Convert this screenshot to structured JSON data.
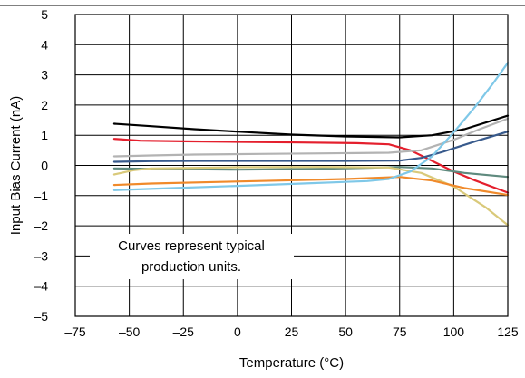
{
  "chart_data": {
    "type": "line",
    "title": "",
    "xlabel": "Temperature (°C)",
    "ylabel": "Input Bias Current (nA)",
    "xlim": [
      -75,
      125
    ],
    "ylim": [
      -5,
      5
    ],
    "x_ticks": [
      -75,
      -50,
      -25,
      0,
      25,
      50,
      75,
      100,
      125
    ],
    "x_tick_labels": [
      "–75",
      "–50",
      "–25",
      "0",
      "25",
      "50",
      "75",
      "100",
      "125"
    ],
    "y_ticks": [
      -5,
      -4,
      -3,
      -2,
      -1,
      0,
      1,
      2,
      3,
      4,
      5
    ],
    "y_tick_labels": [
      "–5",
      "–4",
      "–3",
      "–2",
      "–1",
      "0",
      "1",
      "2",
      "3",
      "4",
      "5"
    ],
    "grid": true,
    "annotation": {
      "line1": "Curves represent typical",
      "line2": "production units."
    },
    "series": [
      {
        "color": "#000000",
        "points": [
          [
            -57,
            1.38
          ],
          [
            -40,
            1.3
          ],
          [
            -20,
            1.2
          ],
          [
            0,
            1.12
          ],
          [
            25,
            1.02
          ],
          [
            50,
            0.96
          ],
          [
            75,
            0.93
          ],
          [
            90,
            1.0
          ],
          [
            105,
            1.2
          ],
          [
            125,
            1.65
          ]
        ]
      },
      {
        "color": "#e41f2d",
        "points": [
          [
            -57,
            0.88
          ],
          [
            -45,
            0.82
          ],
          [
            -25,
            0.8
          ],
          [
            0,
            0.78
          ],
          [
            30,
            0.76
          ],
          [
            55,
            0.74
          ],
          [
            70,
            0.7
          ],
          [
            80,
            0.5
          ],
          [
            90,
            0.15
          ],
          [
            100,
            -0.2
          ],
          [
            110,
            -0.5
          ],
          [
            125,
            -0.9
          ]
        ]
      },
      {
        "color": "#b3b3b3",
        "points": [
          [
            -57,
            0.3
          ],
          [
            -40,
            0.33
          ],
          [
            -20,
            0.36
          ],
          [
            10,
            0.38
          ],
          [
            40,
            0.4
          ],
          [
            70,
            0.42
          ],
          [
            85,
            0.5
          ],
          [
            100,
            0.85
          ],
          [
            112,
            1.2
          ],
          [
            125,
            1.55
          ]
        ]
      },
      {
        "color": "#385a8c",
        "points": [
          [
            -57,
            0.12
          ],
          [
            -40,
            0.14
          ],
          [
            -20,
            0.15
          ],
          [
            20,
            0.15
          ],
          [
            50,
            0.15
          ],
          [
            75,
            0.16
          ],
          [
            85,
            0.25
          ],
          [
            95,
            0.45
          ],
          [
            110,
            0.8
          ],
          [
            125,
            1.12
          ]
        ]
      },
      {
        "color": "#5f8a7e",
        "points": [
          [
            -57,
            -0.1
          ],
          [
            -30,
            -0.12
          ],
          [
            0,
            -0.14
          ],
          [
            30,
            -0.12
          ],
          [
            60,
            -0.08
          ],
          [
            75,
            -0.05
          ],
          [
            90,
            -0.1
          ],
          [
            105,
            -0.25
          ],
          [
            125,
            -0.38
          ]
        ]
      },
      {
        "color": "#d9c97a",
        "points": [
          [
            -57,
            -0.3
          ],
          [
            -48,
            -0.16
          ],
          [
            -40,
            -0.1
          ],
          [
            0,
            -0.06
          ],
          [
            40,
            -0.05
          ],
          [
            70,
            -0.07
          ],
          [
            85,
            -0.25
          ],
          [
            100,
            -0.7
          ],
          [
            115,
            -1.4
          ],
          [
            125,
            -1.98
          ]
        ]
      },
      {
        "color": "#f08a2b",
        "points": [
          [
            -57,
            -0.65
          ],
          [
            -40,
            -0.6
          ],
          [
            -10,
            -0.55
          ],
          [
            20,
            -0.5
          ],
          [
            50,
            -0.45
          ],
          [
            75,
            -0.38
          ],
          [
            90,
            -0.5
          ],
          [
            105,
            -0.75
          ],
          [
            125,
            -0.98
          ]
        ]
      },
      {
        "color": "#7fc8e8",
        "points": [
          [
            -57,
            -0.82
          ],
          [
            -30,
            -0.75
          ],
          [
            0,
            -0.68
          ],
          [
            30,
            -0.6
          ],
          [
            60,
            -0.52
          ],
          [
            70,
            -0.45
          ],
          [
            80,
            -0.2
          ],
          [
            90,
            0.3
          ],
          [
            100,
            1.1
          ],
          [
            110,
            1.95
          ],
          [
            118,
            2.7
          ],
          [
            125,
            3.4
          ]
        ]
      }
    ]
  }
}
